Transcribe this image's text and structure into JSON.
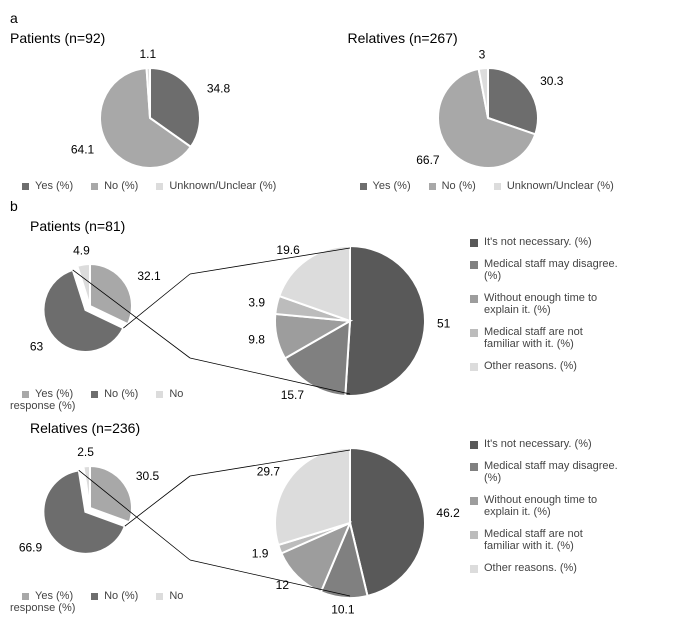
{
  "sectionA": {
    "label": "a",
    "patients": {
      "title": "Patients (n=92)",
      "slices": [
        {
          "label": "Yes (%)",
          "value": 34.8,
          "color": "#6d6d6d"
        },
        {
          "label": "No (%)",
          "value": 64.1,
          "color": "#a8a8a8"
        },
        {
          "label": "Unknown/Unclear (%)",
          "value": 1.1,
          "color": "#dcdcdc"
        }
      ],
      "radius": 50,
      "label_fontsize": 12
    },
    "relatives": {
      "title": "Relatives (n=267)",
      "slices": [
        {
          "label": "Yes (%)",
          "value": 30.3,
          "color": "#6d6d6d"
        },
        {
          "label": "No (%)",
          "value": 66.7,
          "color": "#a8a8a8"
        },
        {
          "label": "Unknown/Unclear (%)",
          "value": 3,
          "color": "#dcdcdc"
        }
      ],
      "radius": 50,
      "label_fontsize": 12
    },
    "legend": [
      "Yes (%)",
      "No (%)",
      "Unknown/Unclear (%)"
    ],
    "legend_colors": [
      "#6d6d6d",
      "#a8a8a8",
      "#dcdcdc"
    ]
  },
  "sectionB": {
    "label": "b",
    "patients": {
      "title": "Patients (n=81)",
      "small": {
        "slices": [
          {
            "label": "Yes (%)",
            "value": 32.1,
            "color": "#a8a8a8"
          },
          {
            "label": "No (%)",
            "value": 63,
            "color": "#6d6d6d"
          },
          {
            "label": "No response (%)",
            "value": 4.9,
            "color": "#dcdcdc"
          }
        ],
        "radius": 42,
        "explode_index": 1
      },
      "big": {
        "slices": [
          {
            "label": "It's not necessary. (%)",
            "value": 51,
            "color": "#595959"
          },
          {
            "label": "Medical staff may disagree. (%)",
            "value": 15.7,
            "color": "#808080"
          },
          {
            "label": "Without enough time to explain it. (%)",
            "value": 9.8,
            "color": "#9d9d9d"
          },
          {
            "label": "Medical staff are not familiar with it. (%)",
            "value": 3.9,
            "color": "#bcbcbc"
          },
          {
            "label": "Other reasons. (%)",
            "value": 19.6,
            "color": "#dcdcdc"
          }
        ],
        "radius": 75
      },
      "legend_small": [
        "Yes (%)",
        "No (%)",
        "No response (%)"
      ],
      "legend_small_colors": [
        "#a8a8a8",
        "#6d6d6d",
        "#dcdcdc"
      ]
    },
    "relatives": {
      "title": "Relatives (n=236)",
      "small": {
        "slices": [
          {
            "label": "Yes (%)",
            "value": 30.5,
            "color": "#a8a8a8"
          },
          {
            "label": "No (%)",
            "value": 66.9,
            "color": "#6d6d6d"
          },
          {
            "label": "No response (%)",
            "value": 2.5,
            "color": "#dcdcdc"
          }
        ],
        "radius": 42,
        "explode_index": 1
      },
      "big": {
        "slices": [
          {
            "label": "It's not necessary. (%)",
            "value": 46.2,
            "color": "#595959"
          },
          {
            "label": "Medical staff may disagree. (%)",
            "value": 10.1,
            "color": "#808080"
          },
          {
            "label": "Without enough time to explain it. (%)",
            "value": 12,
            "color": "#9d9d9d"
          },
          {
            "label": "Medical staff are not familiar with it. (%)",
            "value": 1.9,
            "color": "#bcbcbc"
          },
          {
            "label": "Other reasons. (%)",
            "value": 29.7,
            "color": "#dcdcdc"
          }
        ],
        "radius": 75
      },
      "legend_small": [
        "Yes (%)",
        "No (%)",
        "No response (%)"
      ],
      "legend_small_colors": [
        "#a8a8a8",
        "#6d6d6d",
        "#dcdcdc"
      ]
    },
    "big_legend": [
      "It's not necessary. (%)",
      "Medical staff may disagree. (%)",
      "Without enough time to explain it. (%)",
      "Medical staff are not familiar with it. (%)",
      "Other reasons. (%)"
    ],
    "big_legend_colors": [
      "#595959",
      "#808080",
      "#9d9d9d",
      "#bcbcbc",
      "#dcdcdc"
    ]
  },
  "style": {
    "stroke": "#ffffff",
    "stroke_width": 2,
    "font": "Arial",
    "label_color": "#000000"
  }
}
